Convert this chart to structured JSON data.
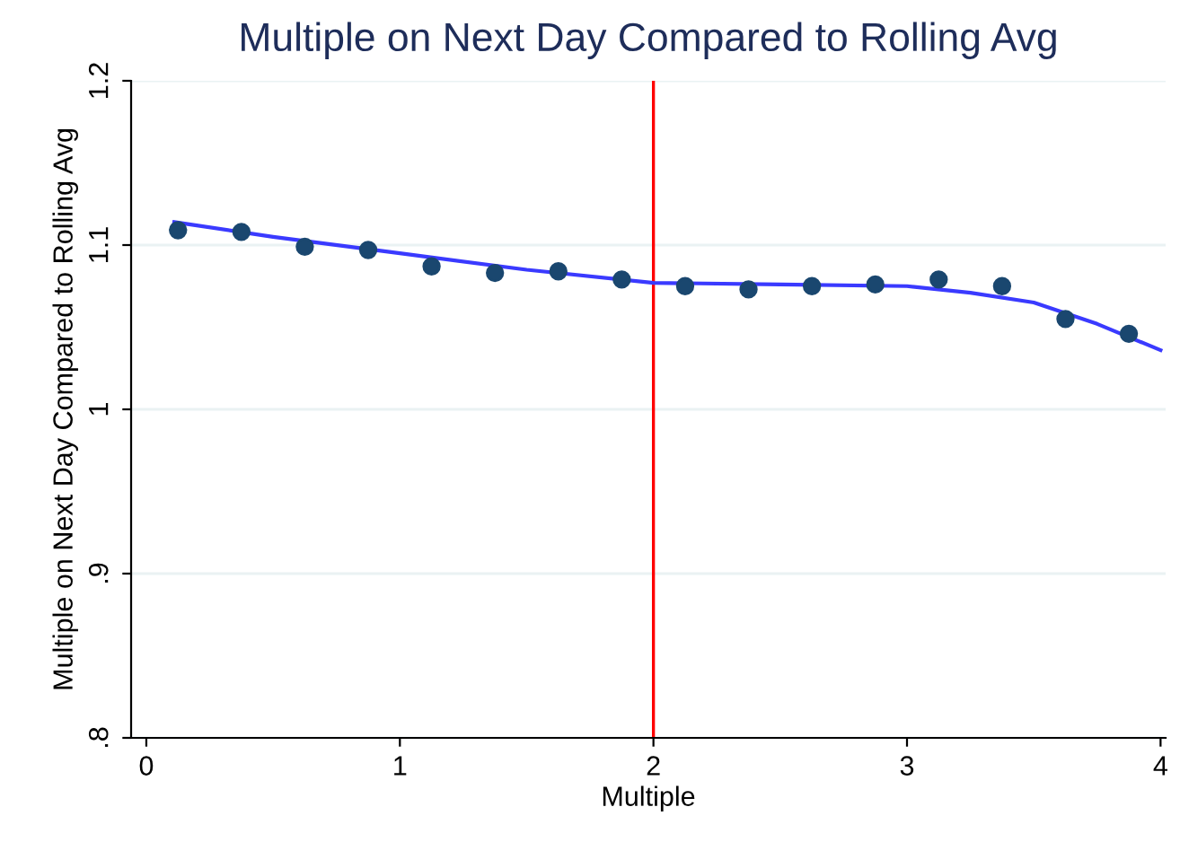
{
  "chart_data": {
    "type": "scatter",
    "title": "Multiple on Next Day Compared to Rolling Avg",
    "xlabel": "Multiple",
    "ylabel": "Multiple on Next Day Compared to Rolling Avg",
    "series": [
      {
        "color": "#1a476f",
        "marker": "circle",
        "x": [
          0.125,
          0.375,
          0.625,
          0.875,
          1.125,
          1.375,
          1.625,
          1.875,
          2.125,
          2.375,
          2.625,
          2.875,
          3.125,
          3.375,
          3.625,
          3.875
        ],
        "values": [
          1.109,
          1.108,
          1.099,
          1.097,
          1.087,
          1.083,
          1.084,
          1.079,
          1.075,
          1.073,
          1.075,
          1.076,
          1.079,
          1.075,
          1.055,
          1.046
        ]
      },
      {
        "type": "line",
        "color": "#3a3aff",
        "marker": "none",
        "line_style": "solid",
        "x": [
          0.11,
          0.5,
          1,
          1.5,
          2,
          2.5,
          3,
          3.25,
          3.5,
          3.75,
          4
        ],
        "values": [
          1.114,
          1.105,
          1.095,
          1.085,
          1.077,
          1.076,
          1.075,
          1.071,
          1.065,
          1.052,
          1.036
        ]
      }
    ],
    "xlim": [
      -0.06,
      4.02
    ],
    "ylim": [
      0.8,
      1.2
    ],
    "xticks": [
      0,
      1,
      2,
      3,
      4
    ],
    "yticks": [
      {
        "value": 0.8,
        "label": ".8"
      },
      {
        "value": 0.9,
        "label": ".9"
      },
      1,
      1.1,
      1.2
    ],
    "ref_lines": [
      {
        "axis": "x",
        "value": 2,
        "color": "#ff0000"
      }
    ],
    "grid": "y",
    "legend": false
  }
}
